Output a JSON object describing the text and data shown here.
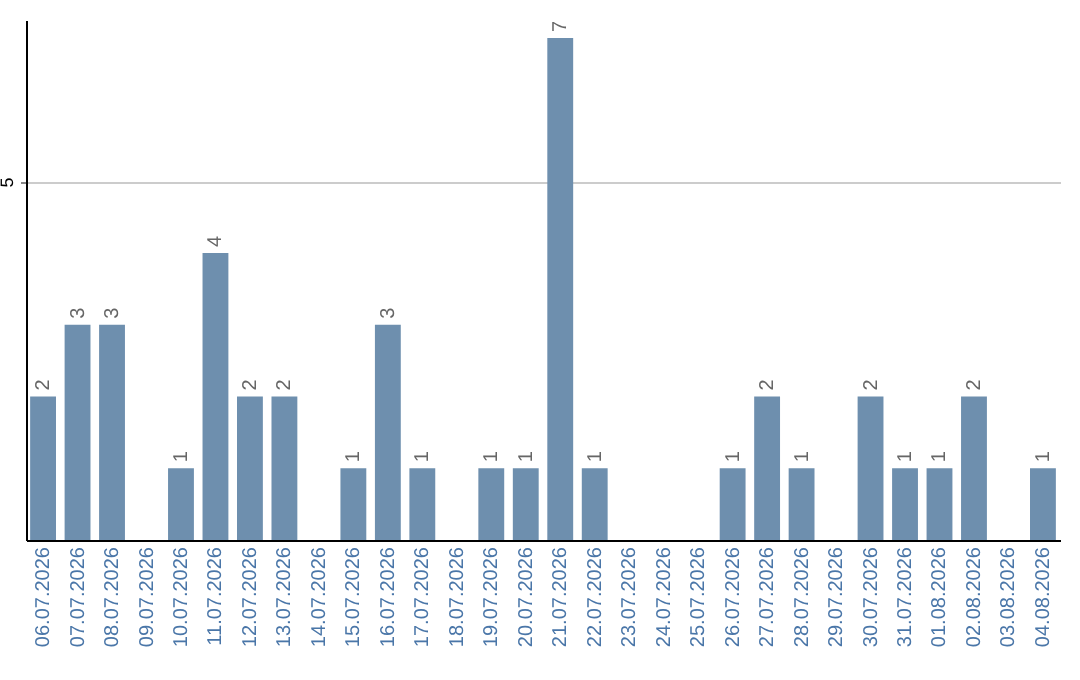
{
  "chart_data": {
    "type": "bar",
    "categories": [
      "06.07.2026",
      "07.07.2026",
      "08.07.2026",
      "09.07.2026",
      "10.07.2026",
      "11.07.2026",
      "12.07.2026",
      "13.07.2026",
      "14.07.2026",
      "15.07.2026",
      "16.07.2026",
      "17.07.2026",
      "18.07.2026",
      "19.07.2026",
      "20.07.2026",
      "21.07.2026",
      "22.07.2026",
      "23.07.2026",
      "24.07.2026",
      "25.07.2026",
      "26.07.2026",
      "27.07.2026",
      "28.07.2026",
      "29.07.2026",
      "30.07.2026",
      "31.07.2026",
      "01.08.2026",
      "02.08.2026",
      "03.08.2026",
      "04.08.2026"
    ],
    "values": [
      2,
      3,
      3,
      0,
      1,
      4,
      2,
      2,
      0,
      1,
      3,
      1,
      0,
      1,
      1,
      7,
      1,
      0,
      0,
      0,
      1,
      2,
      1,
      0,
      2,
      1,
      1,
      2,
      0,
      1
    ],
    "value_labels": [
      "2",
      "3",
      "3",
      null,
      "1",
      "4",
      "2",
      "2",
      null,
      "1",
      "3",
      "1",
      null,
      "1",
      "1",
      "7",
      "1",
      null,
      null,
      null,
      "1",
      "2",
      "1",
      null,
      "2",
      "1",
      "1",
      "2",
      null,
      "1"
    ],
    "color": "#6e8fae",
    "ylim": [
      0,
      7.25
    ],
    "yticks": [
      5
    ],
    "grid": "y"
  }
}
